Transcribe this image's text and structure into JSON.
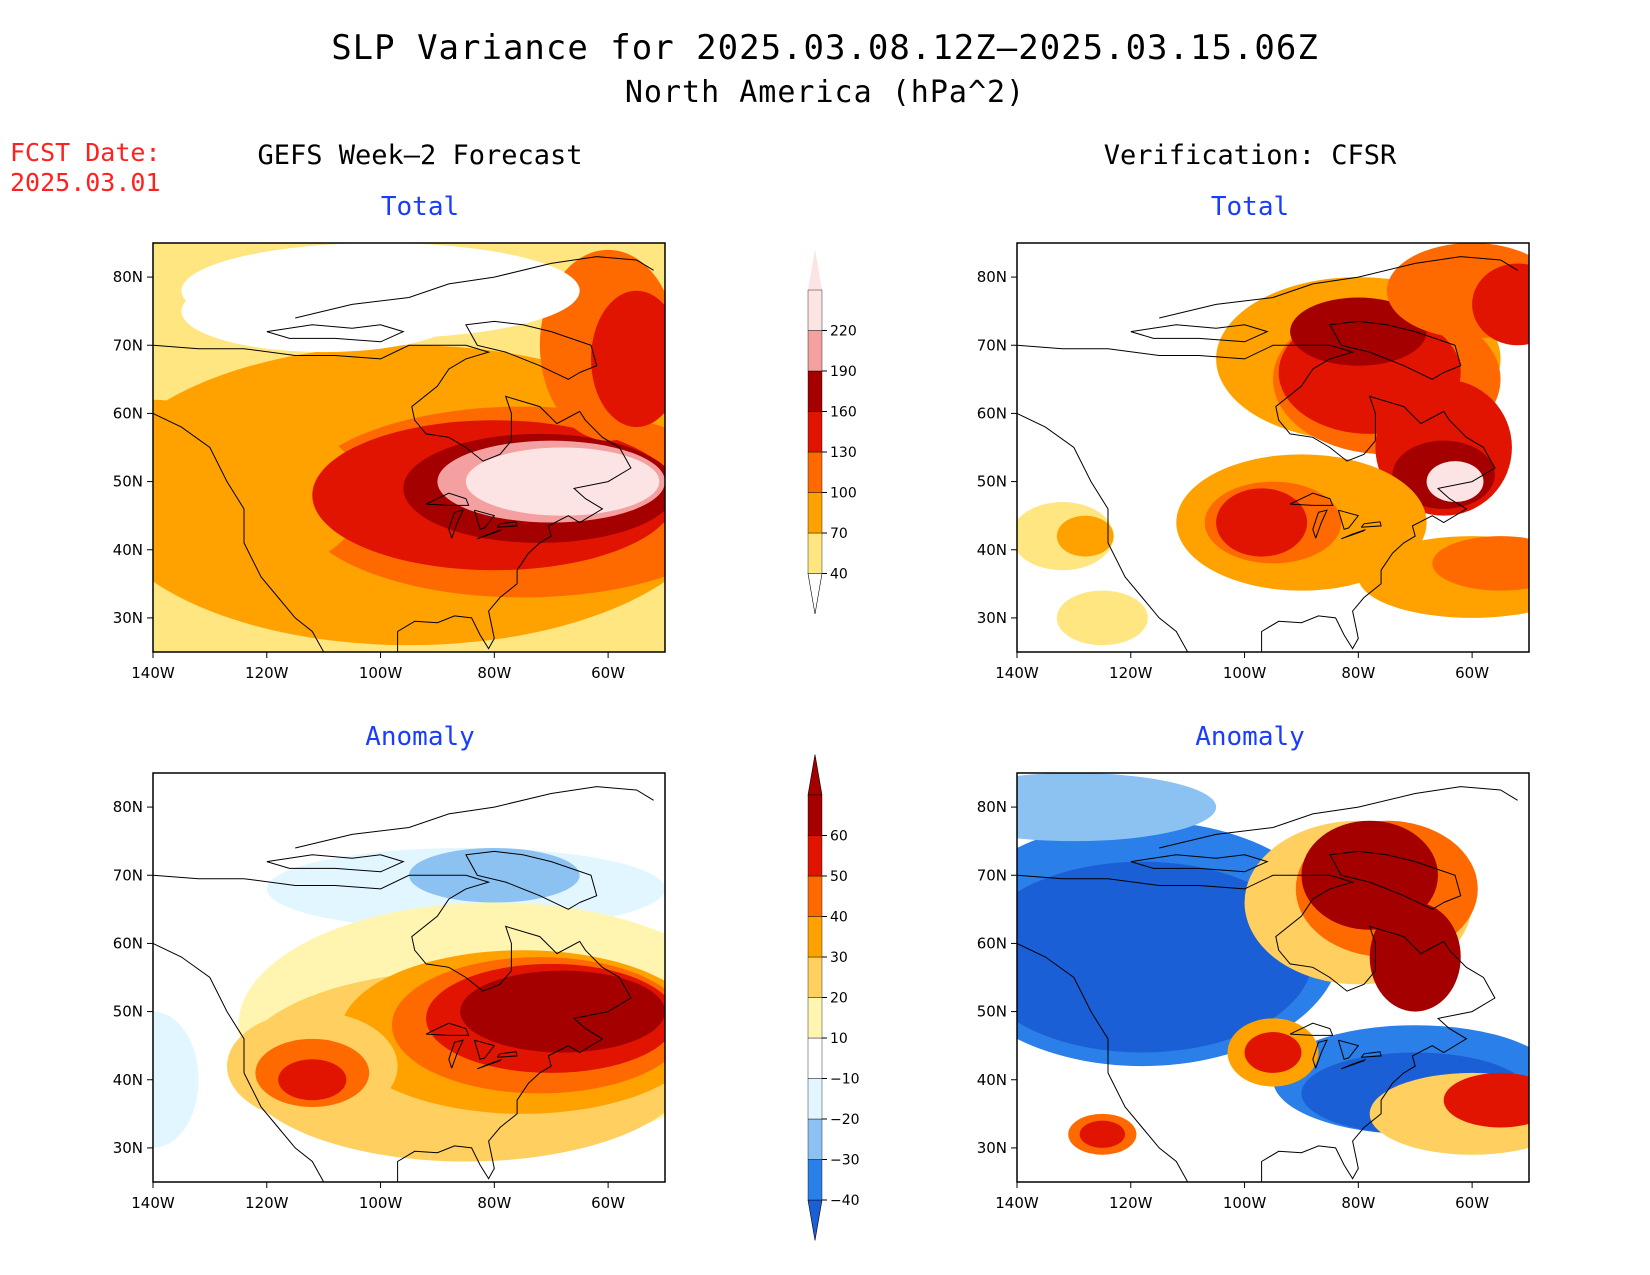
{
  "title": {
    "line1": "SLP Variance for 2025.03.08.12Z–2025.03.15.06Z",
    "line2": "North America (hPa^2)"
  },
  "fcst_date": {
    "label": "FCST Date:",
    "value": "2025.03.01"
  },
  "columns": {
    "left": "GEFS Week–2 Forecast",
    "right": "Verification: CFSR"
  },
  "subtitles": {
    "total": "Total",
    "anomaly": "Anomaly"
  },
  "axes": {
    "lon_labels": [
      "140W",
      "120W",
      "100W",
      "80W",
      "60W"
    ],
    "lat_labels": [
      "80N",
      "70N",
      "60N",
      "50N",
      "40N",
      "30N"
    ],
    "lon_range": [
      -140,
      -50
    ],
    "lat_range": [
      25,
      85
    ]
  },
  "colorbars": {
    "total": {
      "levels": [
        "40",
        "70",
        "100",
        "130",
        "160",
        "190",
        "220"
      ],
      "colors": [
        "#ffffff",
        "#ffe680",
        "#ffa200",
        "#ff6a00",
        "#e01400",
        "#a50000",
        "#f4a0a0",
        "#fde4e4"
      ]
    },
    "anomaly": {
      "levels": [
        "−40",
        "−30",
        "−20",
        "−10",
        "10",
        "20",
        "30",
        "40",
        "50",
        "60"
      ],
      "colors": [
        "#1a5fd6",
        "#2a7fe8",
        "#8cc2f2",
        "#e2f6ff",
        "#ffffff",
        "#fff5b0",
        "#ffd060",
        "#ffa200",
        "#ff6a00",
        "#e01400",
        "#a50000"
      ]
    }
  },
  "panels": [
    {
      "id": "gefs-total",
      "field": "total",
      "column": "left",
      "blobs": [
        [
          -95,
          58,
          70,
          42,
          50
        ],
        [
          -140,
          50,
          18,
          12,
          70
        ],
        [
          -95,
          48,
          55,
          22,
          70
        ],
        [
          -75,
          47,
          40,
          14,
          100
        ],
        [
          -125,
          48,
          22,
          12,
          70
        ],
        [
          -80,
          48,
          32,
          11,
          130
        ],
        [
          -72,
          49,
          24,
          8,
          160
        ],
        [
          -70,
          50,
          20,
          6,
          190
        ],
        [
          -68,
          50,
          17,
          5,
          220
        ],
        [
          -60,
          70,
          12,
          14,
          100
        ],
        [
          -55,
          68,
          8,
          10,
          130
        ],
        [
          -100,
          78,
          35,
          7,
          0
        ],
        [
          -110,
          75,
          25,
          6,
          0
        ]
      ],
      "base": 40
    },
    {
      "id": "cfsr-total",
      "field": "total",
      "column": "right",
      "blobs": [
        [
          -80,
          68,
          25,
          12,
          70
        ],
        [
          -75,
          65,
          20,
          11,
          100
        ],
        [
          -78,
          66,
          16,
          9,
          130
        ],
        [
          -80,
          72,
          12,
          5,
          160
        ],
        [
          -65,
          55,
          12,
          10,
          130
        ],
        [
          -65,
          51,
          9,
          5,
          160
        ],
        [
          -63,
          50,
          5,
          3,
          220
        ],
        [
          -90,
          44,
          22,
          10,
          70
        ],
        [
          -95,
          44,
          12,
          6,
          100
        ],
        [
          -97,
          44,
          8,
          5,
          130
        ],
        [
          -60,
          36,
          20,
          6,
          70
        ],
        [
          -55,
          38,
          12,
          4,
          100
        ],
        [
          -132,
          42,
          9,
          5,
          40
        ],
        [
          -128,
          42,
          5,
          3,
          70
        ],
        [
          -125,
          30,
          8,
          4,
          40
        ],
        [
          -60,
          78,
          15,
          7,
          100
        ],
        [
          -52,
          76,
          8,
          6,
          130
        ]
      ],
      "base": 0
    },
    {
      "id": "gefs-anomaly",
      "field": "anomaly",
      "column": "left",
      "blobs": [
        [
          -85,
          68,
          35,
          6,
          -10
        ],
        [
          -80,
          70,
          15,
          4,
          -20
        ],
        [
          -140,
          40,
          8,
          10,
          -10
        ],
        [
          -80,
          48,
          45,
          18,
          10
        ],
        [
          -85,
          42,
          40,
          14,
          20
        ],
        [
          -75,
          47,
          32,
          12,
          30
        ],
        [
          -72,
          48,
          26,
          10,
          40
        ],
        [
          -70,
          49,
          22,
          8,
          50
        ],
        [
          -68,
          50,
          18,
          6,
          60
        ],
        [
          -112,
          42,
          15,
          8,
          20
        ],
        [
          -112,
          41,
          10,
          5,
          40
        ],
        [
          -112,
          40,
          6,
          3,
          50
        ]
      ],
      "base": 0
    },
    {
      "id": "cfsr-anomaly",
      "field": "anomaly",
      "column": "right",
      "blobs": [
        [
          -118,
          60,
          35,
          18,
          -30
        ],
        [
          -118,
          58,
          30,
          14,
          -40
        ],
        [
          -70,
          40,
          25,
          8,
          -30
        ],
        [
          -70,
          38,
          20,
          6,
          -40
        ],
        [
          -130,
          80,
          25,
          5,
          -20
        ],
        [
          -80,
          66,
          20,
          12,
          20
        ],
        [
          -75,
          68,
          16,
          10,
          40
        ],
        [
          -78,
          70,
          12,
          8,
          60
        ],
        [
          -70,
          58,
          8,
          8,
          60
        ],
        [
          -95,
          44,
          8,
          5,
          30
        ],
        [
          -95,
          44,
          5,
          3,
          50
        ],
        [
          -125,
          32,
          6,
          3,
          40
        ],
        [
          -125,
          32,
          4,
          2,
          50
        ],
        [
          -60,
          35,
          18,
          6,
          20
        ],
        [
          -55,
          37,
          10,
          4,
          50
        ]
      ],
      "base": 0
    }
  ]
}
